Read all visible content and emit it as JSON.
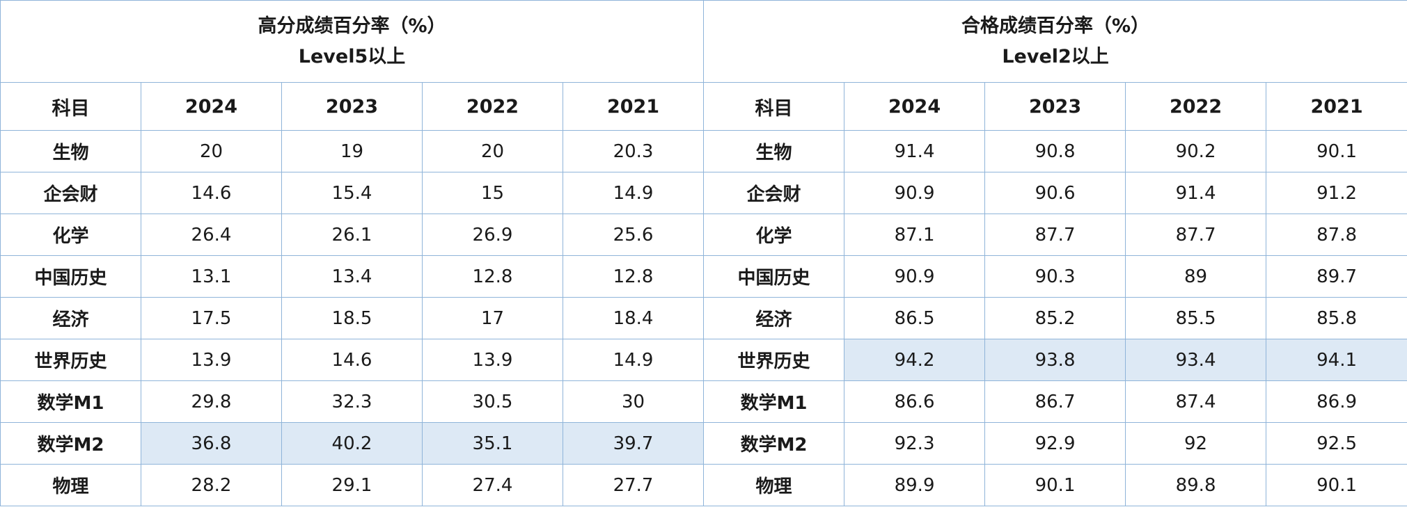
{
  "groups": [
    {
      "title": "高分成绩百分率（%）",
      "subtitle": "Level5以上"
    },
    {
      "title": "合格成绩百分率（%）",
      "subtitle": "Level2以上"
    }
  ],
  "columns": {
    "subject": "科目",
    "years": [
      "2024",
      "2023",
      "2022",
      "2021"
    ]
  },
  "highlight_color": "#dde9f5",
  "rows": [
    {
      "subject": "生物",
      "high": [
        "20",
        "19",
        "20",
        "20.3"
      ],
      "pass": [
        "91.4",
        "90.8",
        "90.2",
        "90.1"
      ]
    },
    {
      "subject": "企会财",
      "high": [
        "14.6",
        "15.4",
        "15",
        "14.9"
      ],
      "pass": [
        "90.9",
        "90.6",
        "91.4",
        "91.2"
      ]
    },
    {
      "subject": "化学",
      "high": [
        "26.4",
        "26.1",
        "26.9",
        "25.6"
      ],
      "pass": [
        "87.1",
        "87.7",
        "87.7",
        "87.8"
      ]
    },
    {
      "subject": "中国历史",
      "high": [
        "13.1",
        "13.4",
        "12.8",
        "12.8"
      ],
      "pass": [
        "90.9",
        "90.3",
        "89",
        "89.7"
      ]
    },
    {
      "subject": "经济",
      "high": [
        "17.5",
        "18.5",
        "17",
        "18.4"
      ],
      "pass": [
        "86.5",
        "85.2",
        "85.5",
        "85.8"
      ]
    },
    {
      "subject": "世界历史",
      "high": [
        "13.9",
        "14.6",
        "13.9",
        "14.9"
      ],
      "pass": [
        "94.2",
        "93.8",
        "93.4",
        "94.1"
      ],
      "highlight": "pass"
    },
    {
      "subject": "数学M1",
      "high": [
        "29.8",
        "32.3",
        "30.5",
        "30"
      ],
      "pass": [
        "86.6",
        "86.7",
        "87.4",
        "86.9"
      ]
    },
    {
      "subject": "数学M2",
      "high": [
        "36.8",
        "40.2",
        "35.1",
        "39.7"
      ],
      "pass": [
        "92.3",
        "92.9",
        "92",
        "92.5"
      ],
      "highlight": "high"
    },
    {
      "subject": "物理",
      "high": [
        "28.2",
        "29.1",
        "27.4",
        "27.7"
      ],
      "pass": [
        "89.9",
        "90.1",
        "89.8",
        "90.1"
      ]
    }
  ]
}
